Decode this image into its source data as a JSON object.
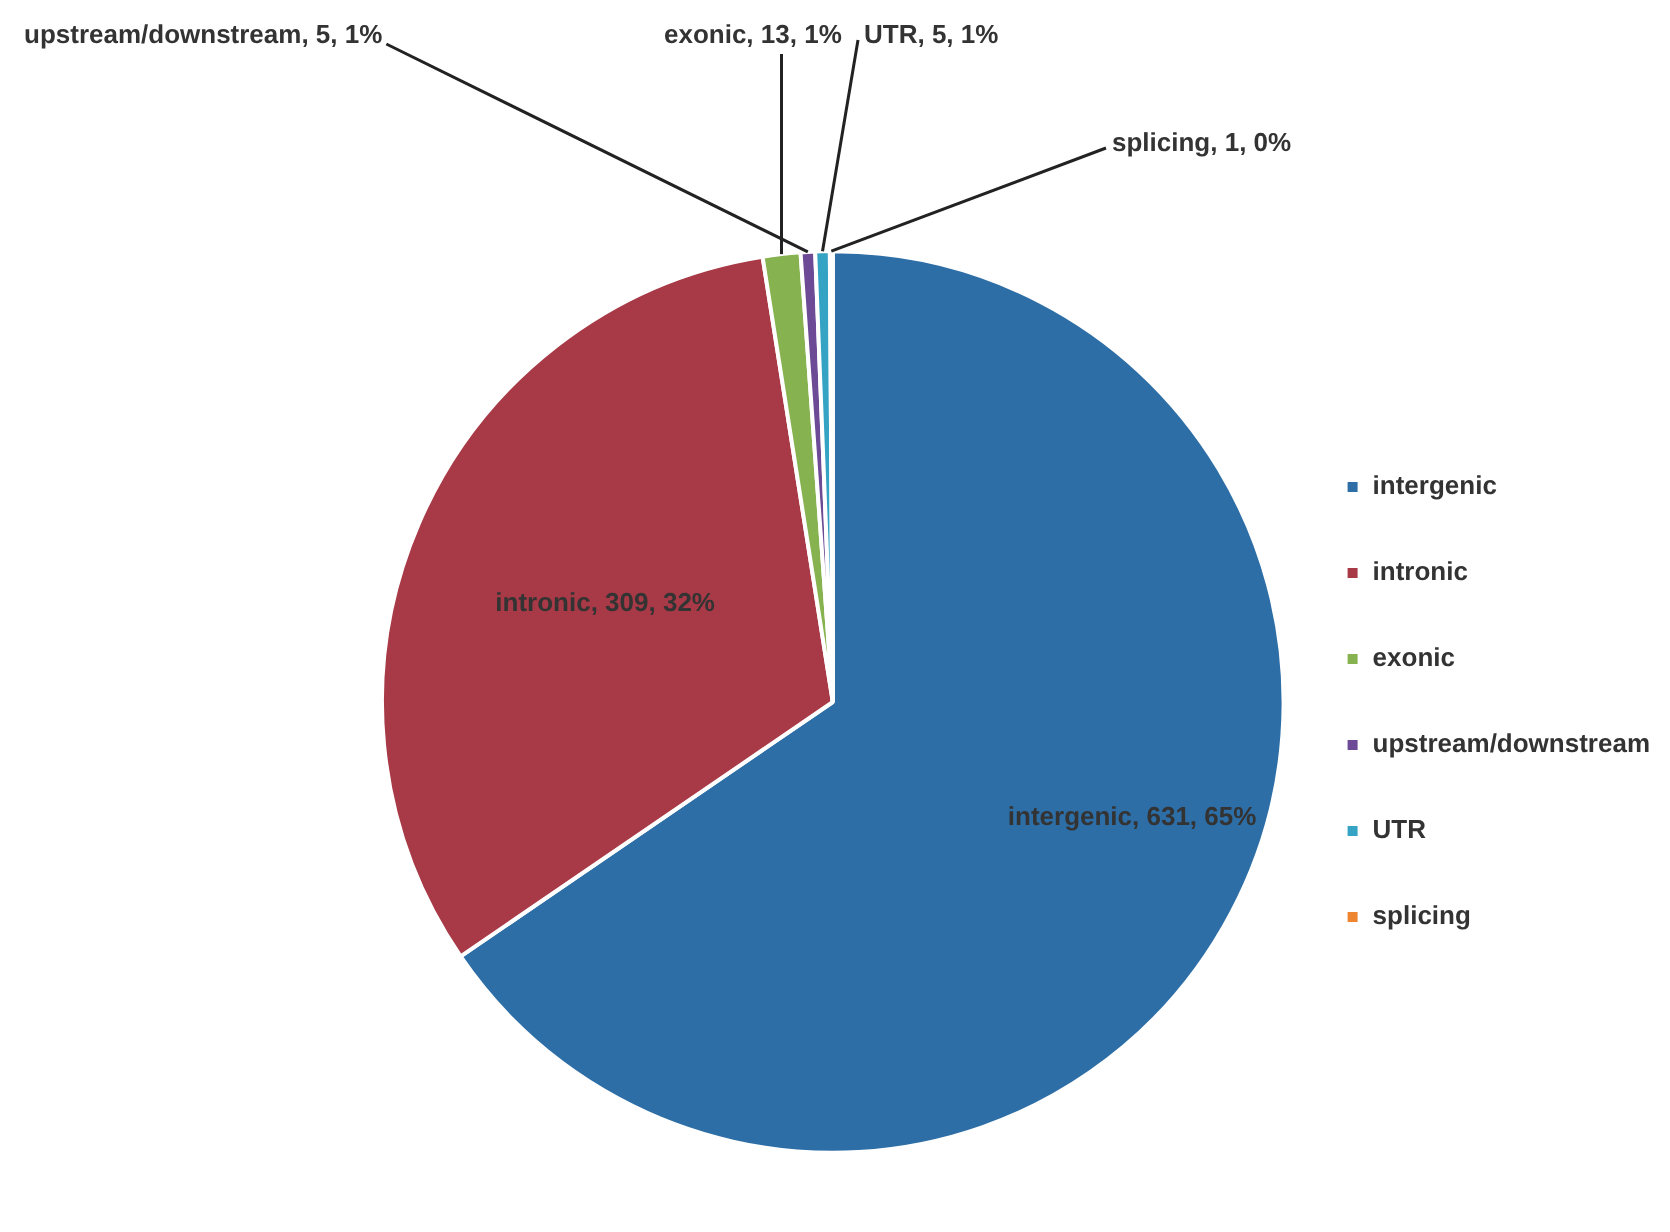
{
  "chart_data": {
    "type": "pie",
    "categories": [
      "intergenic",
      "intronic",
      "exonic",
      "upstream/downstream",
      "UTR",
      "splicing"
    ],
    "values": [
      631,
      309,
      13,
      5,
      5,
      1
    ],
    "colors": [
      "#2e6ea6",
      "#a83a47",
      "#86b24f",
      "#6c4a96",
      "#35a3c3",
      "#ee8530"
    ],
    "value_labels": [
      "intergenic, 631, 65%",
      "intronic, 309, 32%",
      "exonic, 13, 1%",
      "upstream/downstream, 5, 1%",
      "UTR, 5, 1%",
      "splicing, 1, 0%"
    ],
    "legend": "right"
  }
}
